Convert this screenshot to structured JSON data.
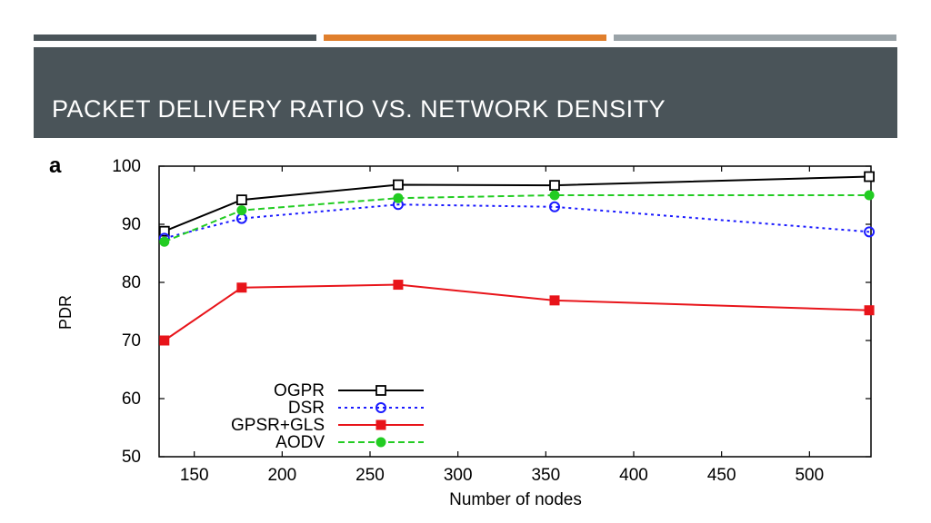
{
  "slide": {
    "title": "PACKET DELIVERY RATIO VS. NETWORK DENSITY",
    "accent_colors": [
      "#4a5459",
      "#e07f2c",
      "#9aa3a8"
    ]
  },
  "chart_data": {
    "type": "line",
    "panel_label": "a",
    "xlabel": "Number of nodes",
    "ylabel": "PDR",
    "xlim": [
      130,
      535
    ],
    "ylim": [
      50,
      100
    ],
    "xticks": [
      150,
      200,
      250,
      300,
      350,
      400,
      450,
      500
    ],
    "yticks": [
      50,
      60,
      70,
      80,
      90,
      100
    ],
    "legend_position": "bottom-left",
    "series": [
      {
        "name": "OGPR",
        "color": "#000000",
        "marker": "open-square",
        "dash": "solid",
        "x": [
          133,
          177,
          266,
          355,
          534
        ],
        "y": [
          88.8,
          94.2,
          96.8,
          96.7,
          98.2
        ]
      },
      {
        "name": "DSR",
        "color": "#1a1aff",
        "marker": "open-circle",
        "dash": "dotted",
        "x": [
          133,
          177,
          266,
          355,
          534
        ],
        "y": [
          87.6,
          91.0,
          93.4,
          93.0,
          88.7
        ]
      },
      {
        "name": "GPSR+GLS",
        "color": "#e8141a",
        "marker": "filled-square",
        "dash": "solid",
        "x": [
          133,
          177,
          266,
          355,
          534
        ],
        "y": [
          70.0,
          79.1,
          79.6,
          76.9,
          75.2
        ]
      },
      {
        "name": "AODV",
        "color": "#22cc22",
        "marker": "filled-circle",
        "dash": "dashed",
        "x": [
          133,
          177,
          266,
          355,
          534
        ],
        "y": [
          87.0,
          92.4,
          94.5,
          95.0,
          95.0
        ]
      }
    ]
  }
}
